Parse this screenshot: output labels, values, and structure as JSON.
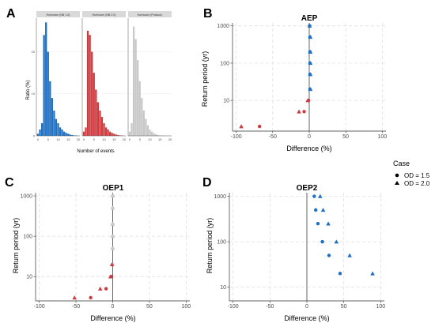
{
  "figure": {
    "panel_letters": [
      "A",
      "B",
      "C",
      "D"
    ]
  },
  "legend": {
    "title": "Case",
    "entries": [
      {
        "label": "OD = 1.5",
        "shape": "circle"
      },
      {
        "label": "OD = 2.0",
        "shape": "triangle"
      }
    ]
  },
  "chart_data": [
    {
      "id": "A",
      "type": "bar",
      "ylabel": "Ratio (%)",
      "xlabel": "Number of events",
      "facets": [
        {
          "strip": "Hurricane (NB 1.5)",
          "color": "#1f6fc2",
          "values": [
            0.5,
            1.5,
            3,
            24,
            27,
            20,
            13,
            9,
            6,
            4,
            3,
            2,
            1.5,
            1,
            0.7,
            0.5,
            0.3,
            0.2,
            0.1,
            0.1
          ]
        },
        {
          "strip": "Hurricane (NB 2.0)",
          "color": "#cf3a3f",
          "values": [
            1,
            2,
            25,
            24,
            20,
            15,
            11,
            8,
            6,
            4.5,
            3,
            2,
            1.5,
            1,
            0.7,
            0.5,
            0.3,
            0.2,
            0.1,
            0.1
          ]
        },
        {
          "strip": "Hurricane (Poisson)",
          "color": "#c8c8c8",
          "values": [
            1,
            3,
            26,
            23,
            18,
            13,
            9,
            6,
            4,
            2.5,
            1.5,
            1,
            0.6,
            0.4,
            0.2,
            0.1,
            0.1,
            0.05,
            0.02,
            0.01
          ]
        }
      ],
      "x_ticks": [
        "0",
        "5",
        "10",
        "15",
        "20"
      ],
      "y_ticks": [
        "0",
        "10",
        "20"
      ],
      "xlim": [
        0,
        20
      ],
      "ylim": [
        0,
        28
      ]
    },
    {
      "id": "B",
      "type": "scatter",
      "title": "AEP",
      "xlabel": "Difference (%)",
      "ylabel": "Return period (yr)",
      "y_scale": "log",
      "xlim": [
        -105,
        105
      ],
      "ylim": [
        1.5,
        1200
      ],
      "x_ticks": [
        -100,
        -50,
        0,
        50,
        100
      ],
      "x_tick_labels": [
        "-100",
        "-50",
        "0",
        "50",
        "100"
      ],
      "y_ticks": [
        10,
        100,
        1000
      ],
      "y_tick_labels": [
        "10",
        "100",
        "1000"
      ],
      "series": [
        {
          "group": "OD = 1.5",
          "shape": "circle",
          "points": [
            {
              "x": 0.5,
              "y": 1000
            },
            {
              "x": 1,
              "y": 500
            },
            {
              "x": 1,
              "y": 200
            },
            {
              "x": 1,
              "y": 100
            },
            {
              "x": 1,
              "y": 50
            },
            {
              "x": 1,
              "y": 20
            }
          ]
        },
        {
          "group": "OD = 2.0",
          "shape": "triangle",
          "points": [
            {
              "x": 0.5,
              "y": 1000
            },
            {
              "x": 1.5,
              "y": 500
            },
            {
              "x": 1.5,
              "y": 200
            },
            {
              "x": 1.5,
              "y": 100
            },
            {
              "x": 1.5,
              "y": 50
            },
            {
              "x": 1.5,
              "y": 20
            }
          ]
        },
        {
          "group": "OD = 1.5",
          "shape": "circle",
          "color": "#cf3a3f",
          "points": [
            {
              "x": -1,
              "y": 10
            },
            {
              "x": -7,
              "y": 5
            },
            {
              "x": -68,
              "y": 2
            }
          ]
        },
        {
          "group": "OD = 2.0",
          "shape": "triangle",
          "color": "#cf3a3f",
          "points": [
            {
              "x": -2,
              "y": 10
            },
            {
              "x": -14,
              "y": 5
            },
            {
              "x": -93,
              "y": 2
            }
          ]
        }
      ]
    },
    {
      "id": "C",
      "type": "scatter",
      "title": "OEP1",
      "xlabel": "Difference (%)",
      "ylabel": "Return period (yr)",
      "y_scale": "log",
      "xlim": [
        -105,
        105
      ],
      "ylim": [
        2.5,
        1200
      ],
      "x_ticks": [
        -100,
        -50,
        0,
        50,
        100
      ],
      "x_tick_labels": [
        "-100",
        "-50",
        "0",
        "50",
        "100"
      ],
      "y_ticks": [
        10,
        100,
        1000
      ],
      "y_tick_labels": [
        "10",
        "100",
        "1000"
      ],
      "series": [
        {
          "group": "OD = 1.5",
          "shape": "circle",
          "color": "#c8c8c8",
          "points": [
            {
              "x": 0,
              "y": 1000
            },
            {
              "x": 0,
              "y": 500
            },
            {
              "x": 0,
              "y": 200
            },
            {
              "x": 0,
              "y": 100
            },
            {
              "x": 0,
              "y": 50
            },
            {
              "x": 0,
              "y": 20
            }
          ]
        },
        {
          "group": "OD = 2.0",
          "shape": "triangle",
          "color": "#c8c8c8",
          "points": [
            {
              "x": 0,
              "y": 1000
            },
            {
              "x": 0,
              "y": 500
            },
            {
              "x": 0,
              "y": 200
            },
            {
              "x": 0,
              "y": 100
            },
            {
              "x": 0,
              "y": 50
            }
          ]
        },
        {
          "group": "OD = 1.5",
          "shape": "circle",
          "color": "#cf3a3f",
          "points": [
            {
              "x": -2,
              "y": 10
            },
            {
              "x": -9,
              "y": 5
            },
            {
              "x": -30,
              "y": 3
            }
          ]
        },
        {
          "group": "OD = 2.0",
          "shape": "triangle",
          "color": "#cf3a3f",
          "points": [
            {
              "x": -1,
              "y": 20
            },
            {
              "x": -3,
              "y": 10
            },
            {
              "x": -17,
              "y": 5
            },
            {
              "x": -52,
              "y": 3
            }
          ]
        }
      ]
    },
    {
      "id": "D",
      "type": "scatter",
      "title": "OEP2",
      "xlabel": "Difference (%)",
      "ylabel": "Return period (yr)",
      "y_scale": "log",
      "xlim": [
        -105,
        105
      ],
      "ylim": [
        5,
        1200
      ],
      "x_ticks": [
        -100,
        -50,
        0,
        50,
        100
      ],
      "x_tick_labels": [
        "-100",
        "-50",
        "0",
        "50",
        "100"
      ],
      "y_ticks": [
        10,
        100,
        1000
      ],
      "y_tick_labels": [
        "10",
        "100",
        "1000"
      ],
      "series": [
        {
          "group": "OD = 1.5",
          "shape": "circle",
          "color": "#1f6fc2",
          "points": [
            {
              "x": 10,
              "y": 1000
            },
            {
              "x": 12,
              "y": 500
            },
            {
              "x": 15,
              "y": 250
            },
            {
              "x": 21,
              "y": 100
            },
            {
              "x": 30,
              "y": 50
            },
            {
              "x": 45,
              "y": 20
            }
          ]
        },
        {
          "group": "OD = 2.0",
          "shape": "triangle",
          "color": "#1f6fc2",
          "points": [
            {
              "x": 18,
              "y": 1000
            },
            {
              "x": 22,
              "y": 500
            },
            {
              "x": 29,
              "y": 250
            },
            {
              "x": 40,
              "y": 100
            },
            {
              "x": 58,
              "y": 50
            },
            {
              "x": 89,
              "y": 20
            }
          ]
        }
      ]
    }
  ]
}
